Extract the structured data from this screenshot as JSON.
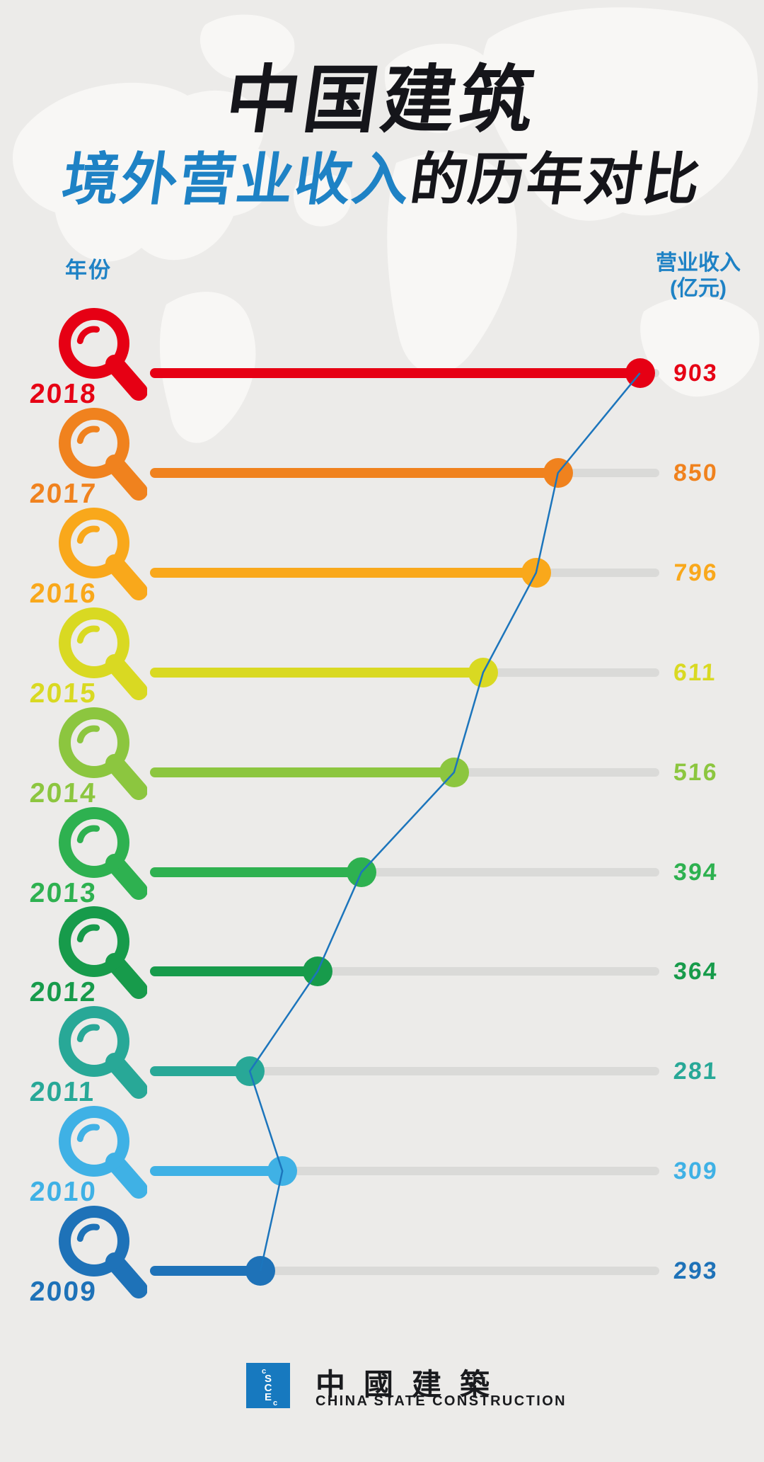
{
  "title": {
    "line1": "中国建筑",
    "line2_highlight": "境外营业收入",
    "line2_rest": "的历年对比"
  },
  "column_headers": {
    "left": "年份",
    "right_line1": "营业收入",
    "right_line2": "(亿元)"
  },
  "chart_data": {
    "type": "bar",
    "orientation": "horizontal",
    "title": "中国建筑境外营业收入的历年对比",
    "xlabel": "营业收入(亿元)",
    "ylabel": "年份",
    "unit": "亿元",
    "categories": [
      "2018",
      "2017",
      "2016",
      "2015",
      "2014",
      "2013",
      "2012",
      "2011",
      "2010",
      "2009"
    ],
    "values": [
      903,
      850,
      796,
      611,
      516,
      394,
      364,
      281,
      309,
      293
    ],
    "bar_colors": [
      "#E60014",
      "#F0821E",
      "#F9A81B",
      "#D9D922",
      "#8CC63F",
      "#2EB150",
      "#179B4B",
      "#28A897",
      "#3FB1E5",
      "#1E72B8"
    ],
    "bar_end_frac": [
      0.962,
      0.801,
      0.758,
      0.654,
      0.597,
      0.415,
      0.329,
      0.196,
      0.26,
      0.217
    ],
    "track_color": "#DADAD8",
    "connector_color": "#1C75BC",
    "legend": "none",
    "grid": false
  },
  "footer": {
    "logo_square_letters": [
      "c",
      "S",
      "C",
      "E",
      "c"
    ],
    "logo_cn": "中國建築",
    "logo_en": "CHINA STATE CONSTRUCTION"
  },
  "colors": {
    "background": "#ECEBE9",
    "map_land": "#F8F7F5",
    "accent_blue": "#1E82C5",
    "title_black": "#15151A",
    "logo_blue": "#1779BF"
  }
}
